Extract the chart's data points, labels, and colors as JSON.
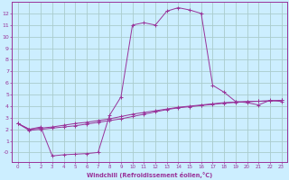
{
  "background_color": "#cceeff",
  "grid_color": "#aacccc",
  "line_color": "#993399",
  "marker": "+",
  "xlabel": "Windchill (Refroidissement éolien,°C)",
  "xlim": [
    -0.5,
    23.5
  ],
  "ylim": [
    -0.8,
    13.0
  ],
  "xticks": [
    0,
    1,
    2,
    3,
    4,
    5,
    6,
    7,
    8,
    9,
    10,
    11,
    12,
    13,
    14,
    15,
    16,
    17,
    18,
    19,
    20,
    21,
    22,
    23
  ],
  "yticks": [
    0,
    1,
    2,
    3,
    4,
    5,
    6,
    7,
    8,
    9,
    10,
    11,
    12
  ],
  "ytick_labels": [
    "-0",
    "1",
    "2",
    "3",
    "4",
    "5",
    "6",
    "7",
    "8",
    "9",
    "10",
    "11",
    "12"
  ],
  "series1": [
    [
      0,
      2.5
    ],
    [
      1,
      2.0
    ],
    [
      2,
      2.2
    ],
    [
      3,
      -0.3
    ],
    [
      4,
      -0.2
    ],
    [
      5,
      -0.15
    ],
    [
      6,
      -0.1
    ],
    [
      7,
      0.0
    ],
    [
      8,
      3.2
    ],
    [
      9,
      4.8
    ],
    [
      10,
      11.0
    ],
    [
      11,
      11.2
    ],
    [
      12,
      11.0
    ],
    [
      13,
      12.2
    ],
    [
      14,
      12.5
    ],
    [
      15,
      12.3
    ],
    [
      16,
      12.0
    ],
    [
      17,
      5.8
    ],
    [
      18,
      5.2
    ],
    [
      19,
      4.4
    ],
    [
      20,
      4.3
    ],
    [
      21,
      4.1
    ],
    [
      22,
      4.5
    ],
    [
      23,
      4.4
    ]
  ],
  "series2": [
    [
      0,
      2.5
    ],
    [
      1,
      2.0
    ],
    [
      2,
      2.1
    ],
    [
      3,
      2.2
    ],
    [
      4,
      2.35
    ],
    [
      5,
      2.5
    ],
    [
      6,
      2.6
    ],
    [
      7,
      2.75
    ],
    [
      8,
      2.9
    ],
    [
      9,
      3.1
    ],
    [
      10,
      3.3
    ],
    [
      11,
      3.45
    ],
    [
      12,
      3.6
    ],
    [
      13,
      3.75
    ],
    [
      14,
      3.9
    ],
    [
      15,
      4.0
    ],
    [
      16,
      4.1
    ],
    [
      17,
      4.2
    ],
    [
      18,
      4.3
    ],
    [
      19,
      4.35
    ],
    [
      20,
      4.4
    ],
    [
      21,
      4.42
    ],
    [
      22,
      4.45
    ],
    [
      23,
      4.5
    ]
  ],
  "series3": [
    [
      0,
      2.5
    ],
    [
      1,
      1.9
    ],
    [
      2,
      2.0
    ],
    [
      3,
      2.1
    ],
    [
      4,
      2.2
    ],
    [
      5,
      2.3
    ],
    [
      6,
      2.45
    ],
    [
      7,
      2.6
    ],
    [
      8,
      2.75
    ],
    [
      9,
      2.9
    ],
    [
      10,
      3.1
    ],
    [
      11,
      3.3
    ],
    [
      12,
      3.5
    ],
    [
      13,
      3.7
    ],
    [
      14,
      3.85
    ],
    [
      15,
      3.95
    ],
    [
      16,
      4.05
    ],
    [
      17,
      4.15
    ],
    [
      18,
      4.25
    ],
    [
      19,
      4.32
    ],
    [
      20,
      4.38
    ],
    [
      21,
      4.42
    ],
    [
      22,
      4.46
    ],
    [
      23,
      4.5
    ]
  ]
}
